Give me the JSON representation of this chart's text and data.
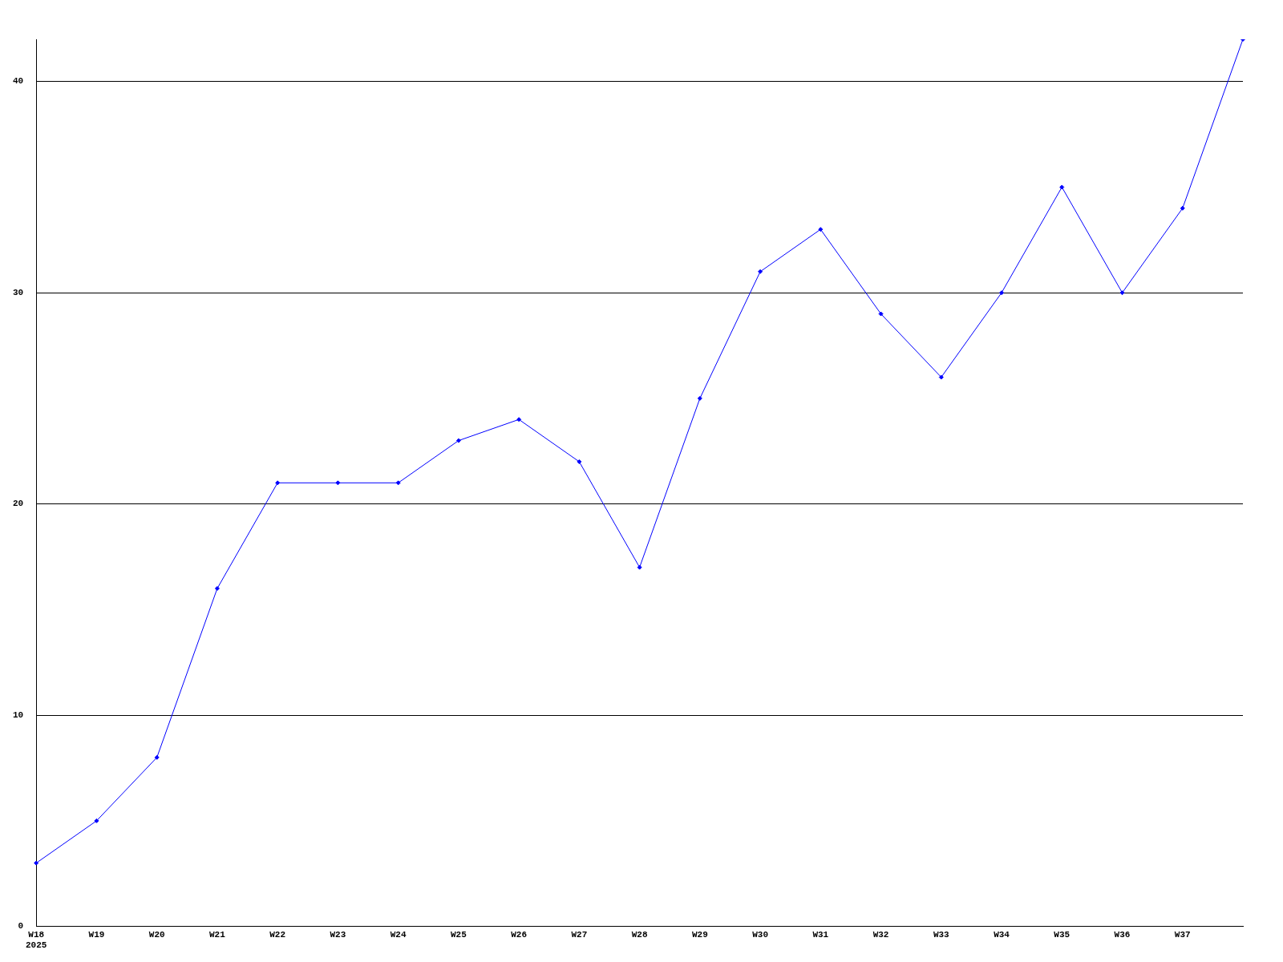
{
  "chart_data": {
    "type": "line",
    "categories": [
      "W18\n2025",
      "W19",
      "W20",
      "W21",
      "W22",
      "W23",
      "W24",
      "W25",
      "W26",
      "W27",
      "W28",
      "W29",
      "W30",
      "W31",
      "W32",
      "W33",
      "W34",
      "W35",
      "W36",
      "W37",
      null
    ],
    "series": [
      {
        "color": "#0000ff",
        "values": [
          3,
          5,
          8,
          16,
          21,
          21,
          21,
          23,
          24,
          22,
          17,
          25,
          31,
          33,
          29,
          26,
          30,
          35,
          30,
          34,
          42
        ]
      }
    ],
    "ylim": [
      0,
      42
    ],
    "yticks": [
      0,
      10,
      20,
      30,
      40
    ],
    "grid": "y",
    "legend": false,
    "marker": "diamond",
    "line_style": "solid"
  }
}
